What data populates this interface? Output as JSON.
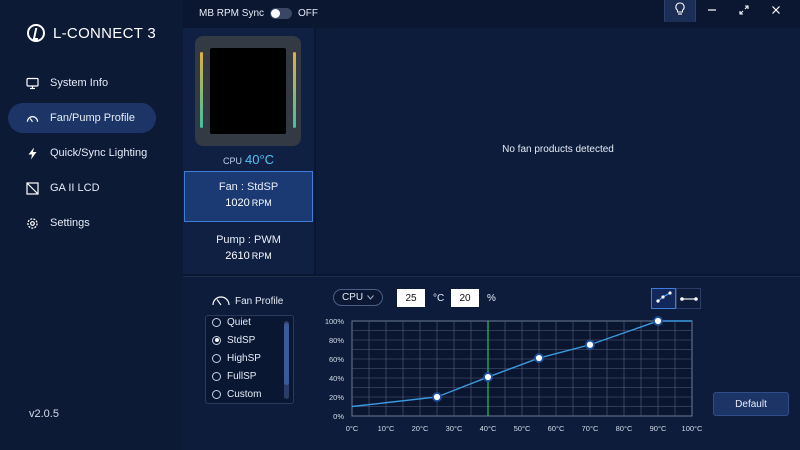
{
  "brand": {
    "name": "L-CONNECT 3"
  },
  "nav": [
    {
      "label": "System Info",
      "icon": "monitor-icon",
      "active": false
    },
    {
      "label": "Fan/Pump Profile",
      "icon": "gauge-icon",
      "active": true
    },
    {
      "label": "Quick/Sync Lighting",
      "icon": "lightning-icon",
      "active": false
    },
    {
      "label": "GA II LCD",
      "icon": "lcd-icon",
      "active": false
    },
    {
      "label": "Settings",
      "icon": "gear-icon",
      "active": false
    }
  ],
  "version": "v2.0.5",
  "topbar": {
    "rpm_sync_label": "MB RPM Sync",
    "rpm_sync_state": "OFF"
  },
  "device": {
    "cpu_label": "CPU",
    "cpu_temp": "40°C",
    "fan_title": "Fan : StdSP",
    "fan_rpm": "1020",
    "pump_title": "Pump : PWM",
    "pump_rpm": "2610",
    "rpm_unit": "RPM"
  },
  "main": {
    "message": "No fan products detected"
  },
  "profile": {
    "label": "Fan Profile",
    "items": [
      {
        "label": "Quiet",
        "selected": false
      },
      {
        "label": "StdSP",
        "selected": true
      },
      {
        "label": "HighSP",
        "selected": false
      },
      {
        "label": "FullSP",
        "selected": false
      },
      {
        "label": "Custom",
        "selected": false
      }
    ]
  },
  "controls": {
    "source": "CPU",
    "temp_value": "25",
    "temp_unit": "°C",
    "percent_value": "20",
    "percent_unit": "%",
    "default_label": "Default"
  },
  "colors": {
    "accent": "#4fc3f7",
    "curve": "#3a9be0",
    "marker": "#22c55e"
  },
  "chart_data": {
    "type": "line",
    "x_ticks": [
      "0°C",
      "10°C",
      "20°C",
      "30°C",
      "40°C",
      "50°C",
      "60°C",
      "70°C",
      "80°C",
      "90°C",
      "100°C"
    ],
    "y_ticks": [
      "0%",
      "20%",
      "40%",
      "60%",
      "80%",
      "100%"
    ],
    "xlim": [
      0,
      100
    ],
    "ylim": [
      0,
      100
    ],
    "grid": true,
    "current_temp_marker": 40,
    "points": [
      {
        "x": 25,
        "y": 20
      },
      {
        "x": 40,
        "y": 41
      },
      {
        "x": 55,
        "y": 61
      },
      {
        "x": 70,
        "y": 75
      },
      {
        "x": 90,
        "y": 100
      }
    ],
    "line_start": {
      "x": 0,
      "y": 10
    },
    "line_end": {
      "x": 100,
      "y": 100
    }
  }
}
